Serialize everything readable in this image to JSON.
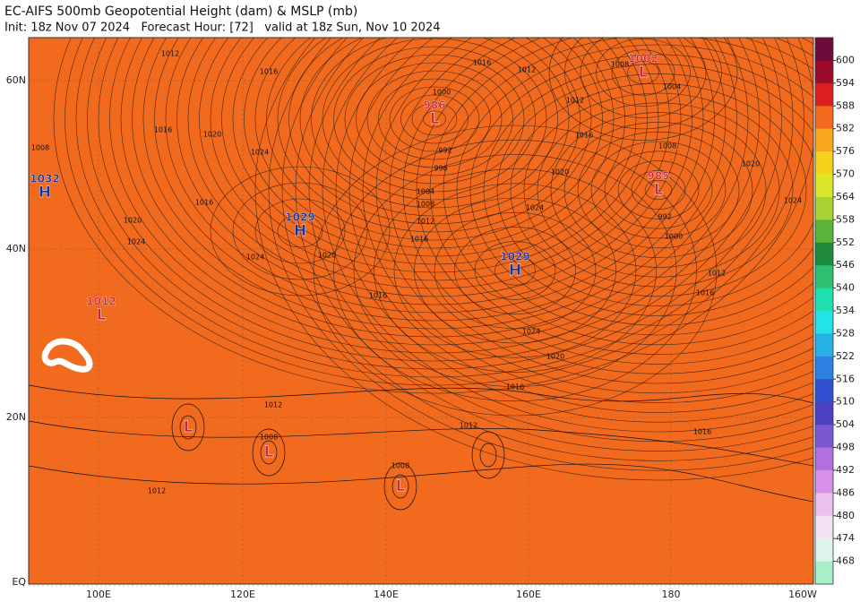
{
  "header": {
    "title": "EC-AIFS 500mb Geopotential Height (dam) & MSLP (mb)",
    "subtitle": "Init: 18z Nov 07 2024   Forecast Hour: [72]   valid at 18z Sun, Nov 10 2024"
  },
  "map": {
    "lat_labels": [
      "60N",
      "40N",
      "20N",
      "EQ"
    ],
    "lon_labels": [
      "100E",
      "120E",
      "140E",
      "160E",
      "180",
      "160W"
    ],
    "pressure_centers": [
      {
        "symbol": "H",
        "label": "1032"
      },
      {
        "symbol": "H",
        "label": "1029"
      },
      {
        "symbol": "H",
        "label": "1029"
      },
      {
        "symbol": "L",
        "label": "986"
      },
      {
        "symbol": "L",
        "label": "1002"
      },
      {
        "symbol": "L",
        "label": "985"
      },
      {
        "symbol": "L",
        "label": "1012"
      },
      {
        "symbol": "L"
      },
      {
        "symbol": "L"
      },
      {
        "symbol": "L"
      }
    ],
    "isobar_labels": [
      "1012",
      "1016",
      "1008",
      "1016",
      "1020",
      "1024",
      "1020",
      "1024",
      "1016",
      "1024",
      "1020",
      "1016",
      "1012",
      "1008",
      "1004",
      "996",
      "992",
      "1000",
      "1016",
      "1012",
      "1008",
      "1004",
      "1012",
      "1016",
      "1020",
      "1024",
      "1020",
      "1024",
      "1008",
      "992",
      "1000",
      "1012",
      "1016",
      "1024",
      "1020",
      "1016",
      "1012",
      "1016",
      "1012",
      "1008",
      "1008",
      "1012",
      "1016"
    ]
  },
  "colorbar": {
    "levels": [
      600,
      594,
      588,
      582,
      576,
      570,
      564,
      558,
      552,
      546,
      540,
      534,
      528,
      522,
      516,
      510,
      504,
      498,
      492,
      486,
      480,
      474,
      468
    ],
    "colors": [
      "#6e0a3c",
      "#9c0a2a",
      "#dc1e1e",
      "#f26a1e",
      "#f8a61c",
      "#f4d21a",
      "#dce628",
      "#a8d232",
      "#5cb43a",
      "#1f8a3a",
      "#2cc070",
      "#20e0b0",
      "#20e4e8",
      "#28b0e8",
      "#2c80e0",
      "#3050d0",
      "#4a40c0",
      "#7a58d0",
      "#b070e0",
      "#d890e8",
      "#ecc0ee",
      "#f2e2f2",
      "#dff4ea",
      "#a8f0c8"
    ]
  }
}
